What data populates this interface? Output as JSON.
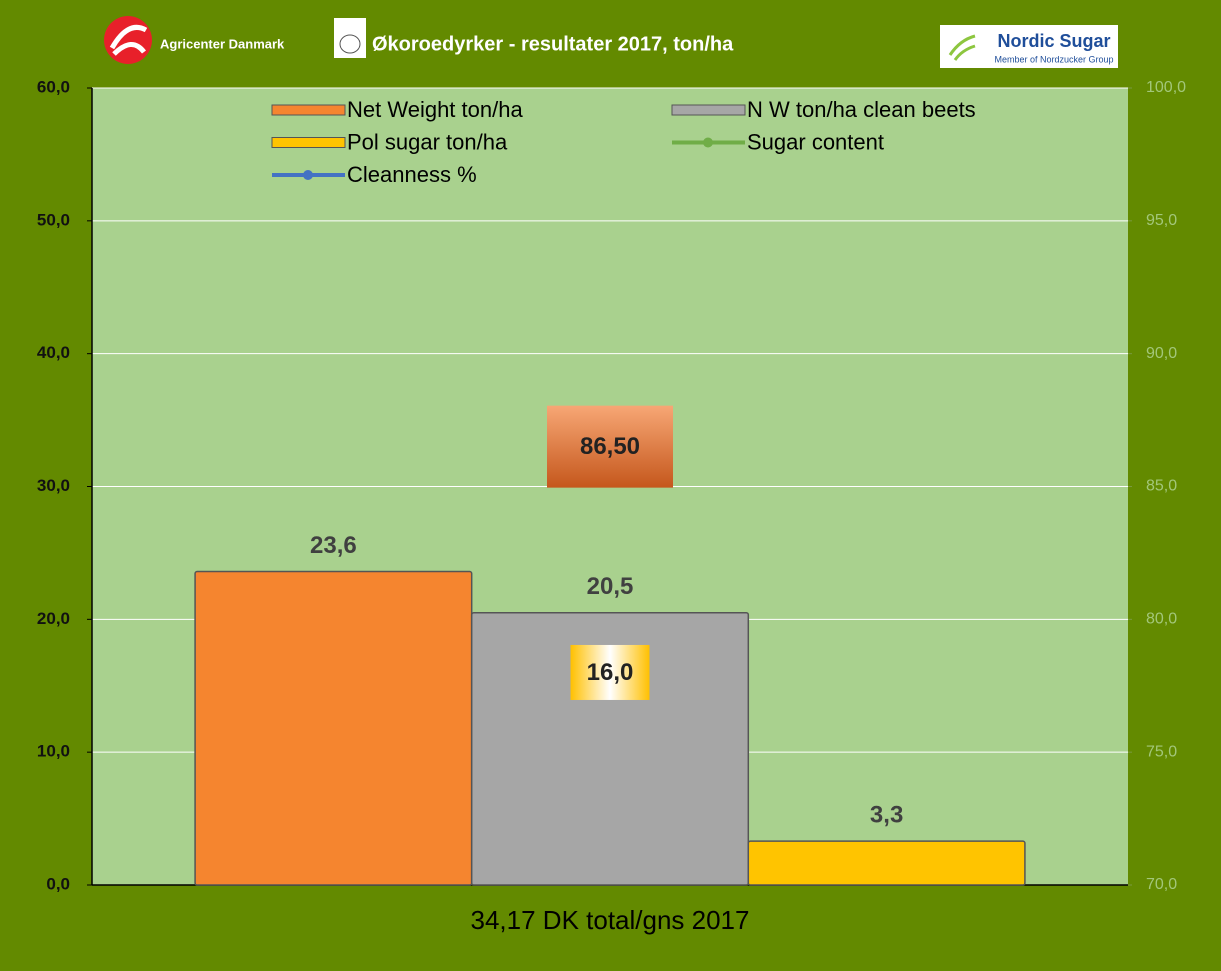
{
  "chart_data": {
    "type": "bar",
    "brand": "Agricenter Danmark",
    "title": "Økoroedyrker - resultater 2017,  ton/ha",
    "logo_text": "Nordic Sugar",
    "logo_subtext": "Member of Nordzucker Group",
    "categories": [
      "34,17 DK total/gns 2017"
    ],
    "series": [
      {
        "name": "Net Weight ton/ha",
        "color": "#f5852f",
        "values": [
          23.6
        ],
        "value_labels": [
          "23,6"
        ]
      },
      {
        "name": "N W  ton/ha clean beets",
        "color": "#a6a6a6",
        "values": [
          20.5
        ],
        "value_labels": [
          "20,5"
        ]
      },
      {
        "name": "Pol sugar ton/ha",
        "color": "#ffc400",
        "values": [
          3.3
        ],
        "value_labels": [
          "3,3"
        ]
      },
      {
        "name": "Sugar content",
        "type": "line",
        "color": "#70ad47",
        "values": [
          16.0
        ],
        "value_labels": [
          "16,0"
        ]
      },
      {
        "name": "Cleanness %",
        "type": "line",
        "axis": "y2",
        "color": "#4472c4",
        "values": [
          86.5
        ],
        "value_labels": [
          "86,50"
        ]
      }
    ],
    "ylim": [
      0,
      60
    ],
    "yticks": [
      {
        "value": 0,
        "label": "0,0"
      },
      {
        "value": 10,
        "label": "10,0"
      },
      {
        "value": 20,
        "label": "20,0"
      },
      {
        "value": 30,
        "label": "30,0"
      },
      {
        "value": 40,
        "label": "40,0"
      },
      {
        "value": 50,
        "label": "50,0"
      },
      {
        "value": 60,
        "label": "60,0"
      }
    ],
    "y2lim": [
      70,
      100
    ],
    "y2ticks": [
      {
        "value": 70,
        "label": "70,0"
      },
      {
        "value": 75,
        "label": "75,0"
      },
      {
        "value": 80,
        "label": "80,0"
      },
      {
        "value": 85,
        "label": "85,0"
      },
      {
        "value": 90,
        "label": "90,0"
      },
      {
        "value": 95,
        "label": "95,0"
      },
      {
        "value": 100,
        "label": "100,0"
      }
    ],
    "grid": true,
    "legend": "top"
  }
}
